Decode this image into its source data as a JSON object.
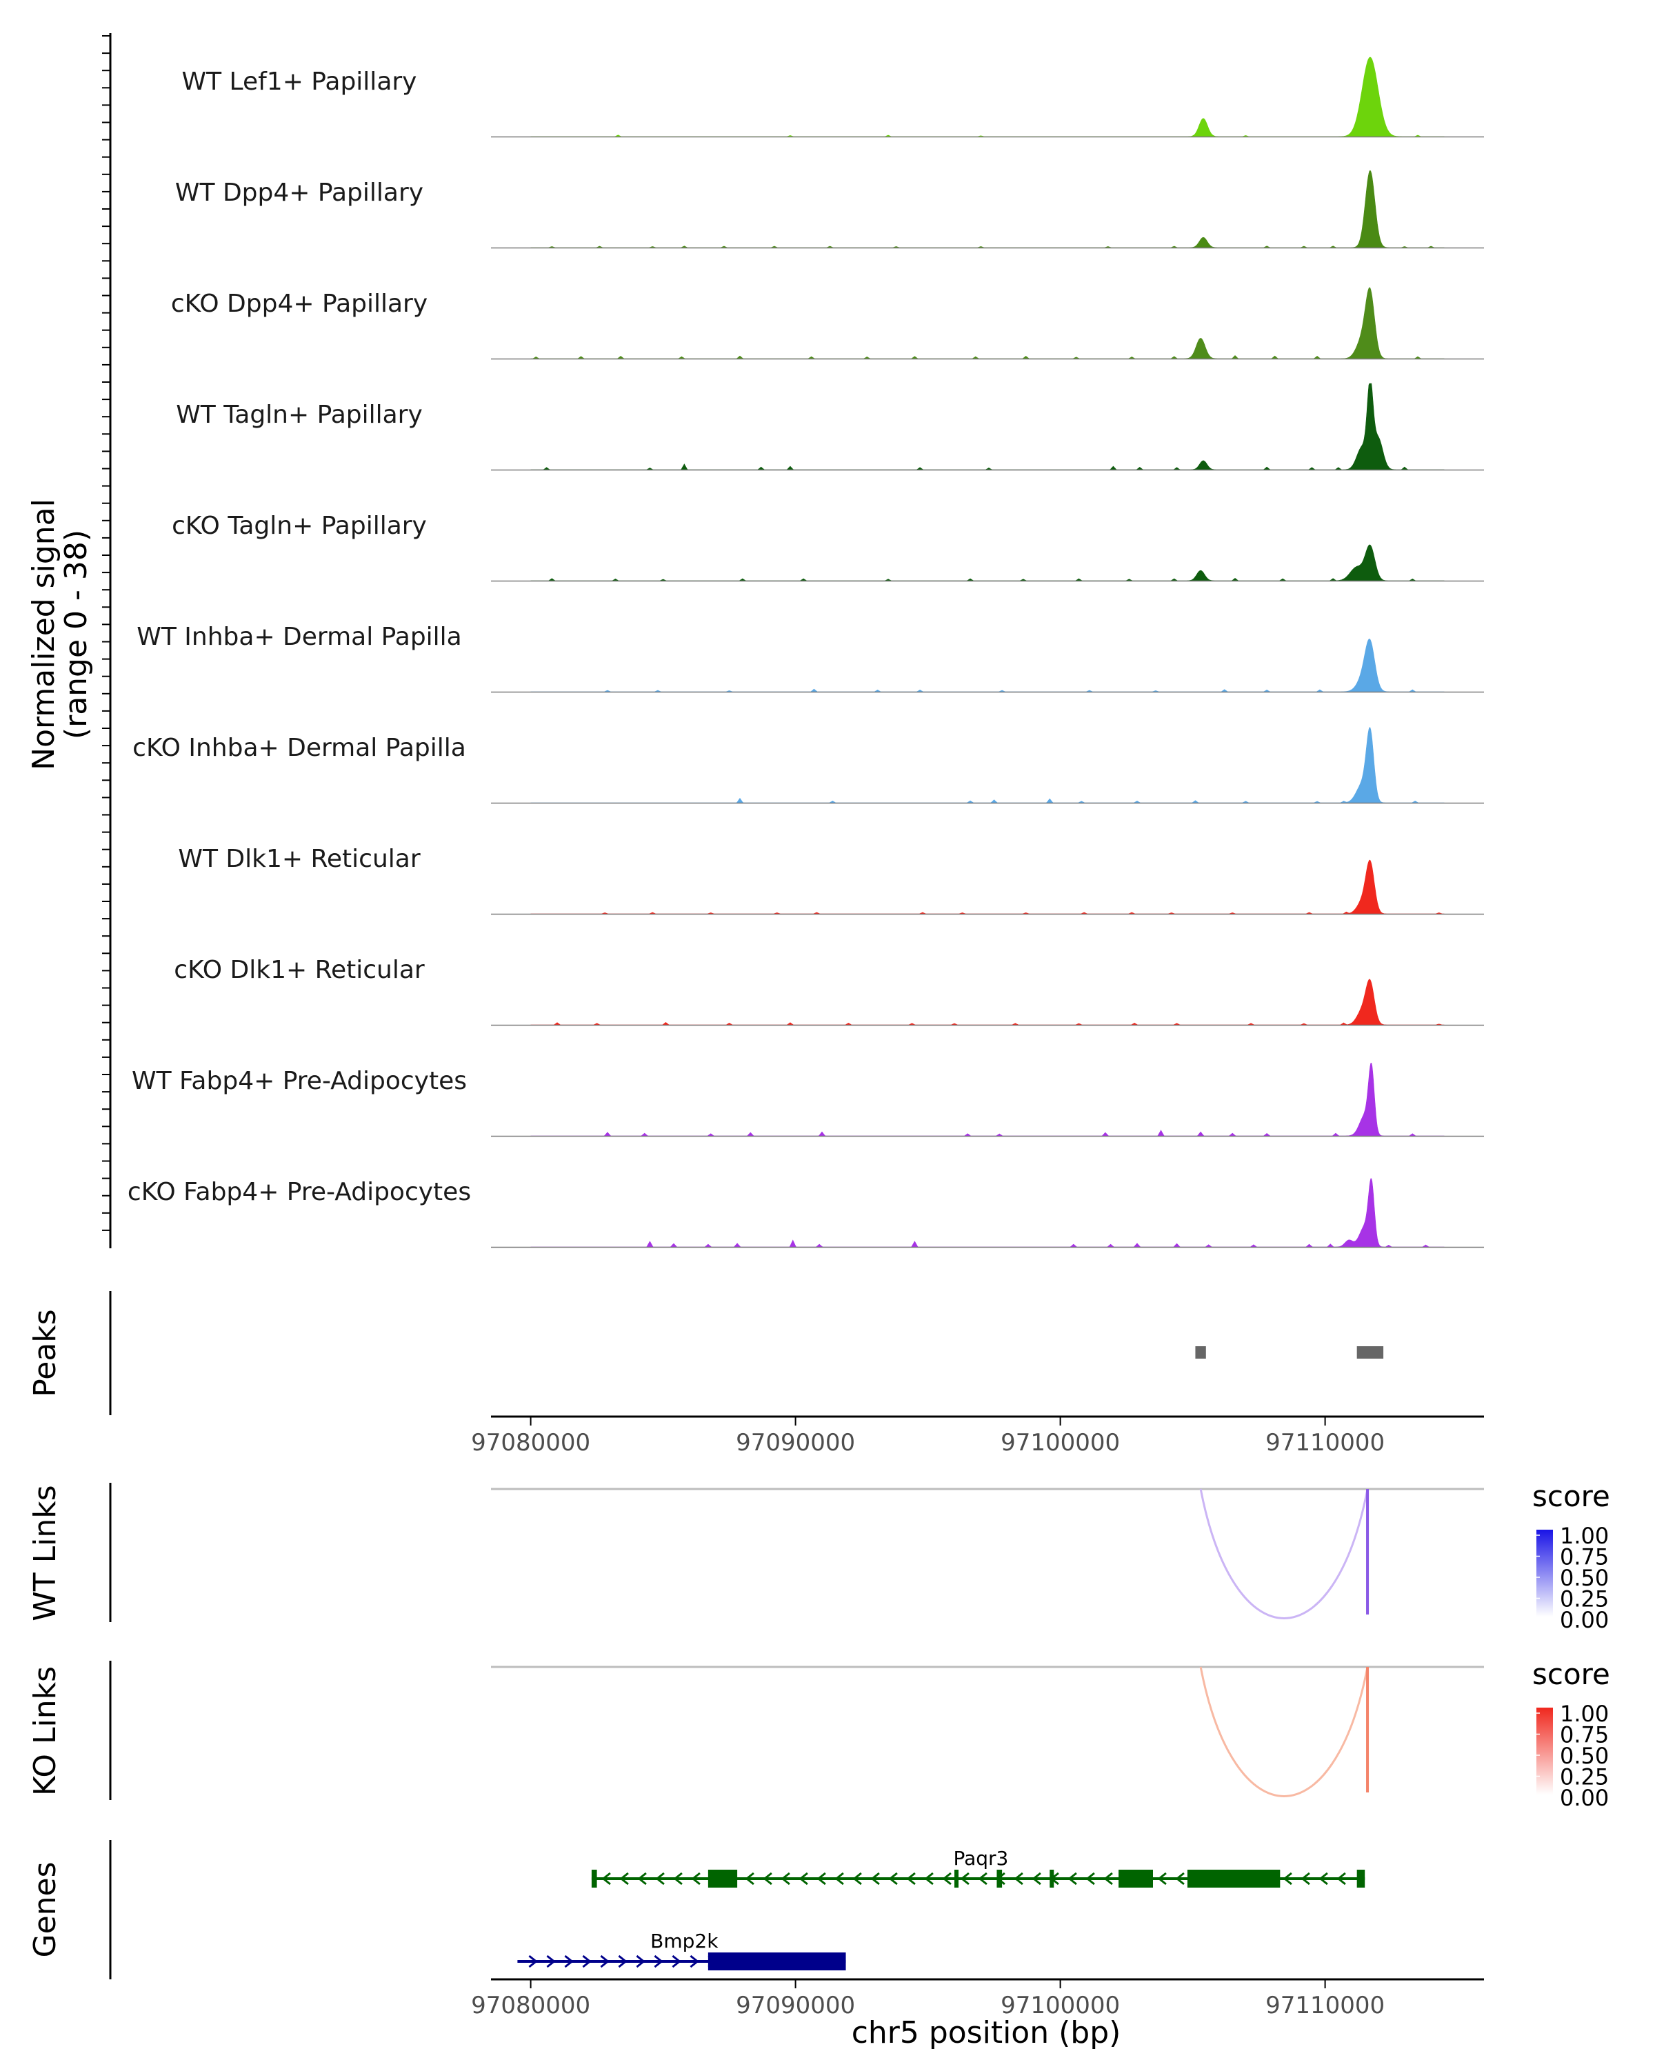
{
  "chart_data": {
    "type": "area",
    "title": "",
    "xlabel": "chr5 position (bp)",
    "xlim": [
      97078500,
      97116000
    ],
    "x_ticks": [
      97080000,
      97090000,
      97100000,
      97110000
    ],
    "x_tick_labels": [
      "97080000",
      "97090000",
      "97100000",
      "97110000"
    ],
    "coverage": {
      "ylabel_line1": "Normalized signal",
      "ylabel_line2": "(range 0 - 38)",
      "ylim": [
        0,
        38
      ],
      "tracks": [
        {
          "name": "WT Lef1+ Papillary",
          "color": "#6dd40c",
          "noise": [
            [
              97083300,
              0.7
            ],
            [
              97089800,
              0.5
            ],
            [
              97093500,
              0.6
            ],
            [
              97097000,
              0.4
            ],
            [
              97107000,
              0.5
            ],
            [
              97113500,
              0.6
            ]
          ],
          "peaks": [
            [
              97105400,
              160,
              8
            ],
            [
              97111700,
              300,
              35
            ]
          ]
        },
        {
          "name": "WT Dpp4+ Papillary",
          "color": "#4a8a14",
          "noise": [
            [
              97080800,
              0.5
            ],
            [
              97082600,
              0.6
            ],
            [
              97084600,
              0.5
            ],
            [
              97085800,
              0.7
            ],
            [
              97087300,
              0.6
            ],
            [
              97089200,
              0.6
            ],
            [
              97091300,
              0.6
            ],
            [
              97093800,
              0.5
            ],
            [
              97097000,
              0.5
            ],
            [
              97101800,
              0.5
            ],
            [
              97104300,
              0.6
            ],
            [
              97107800,
              0.7
            ],
            [
              97109200,
              0.6
            ],
            [
              97110300,
              0.7
            ],
            [
              97113000,
              0.5
            ],
            [
              97114000,
              0.6
            ]
          ],
          "peaks": [
            [
              97105400,
              150,
              4.5
            ],
            [
              97111700,
              180,
              34
            ]
          ]
        },
        {
          "name": "cKO Dpp4+ Papillary",
          "color": "#4f8c1a",
          "noise": [
            [
              97080200,
              0.8
            ],
            [
              97081900,
              1.0
            ],
            [
              97083400,
              1.1
            ],
            [
              97085700,
              0.9
            ],
            [
              97087900,
              1.2
            ],
            [
              97090600,
              0.9
            ],
            [
              97092700,
              0.8
            ],
            [
              97094500,
              1.0
            ],
            [
              97096800,
              0.9
            ],
            [
              97098700,
              1.1
            ],
            [
              97100600,
              0.7
            ],
            [
              97102700,
              0.8
            ],
            [
              97104300,
              1.0
            ],
            [
              97106600,
              1.4
            ],
            [
              97108100,
              1.2
            ],
            [
              97109700,
              1.1
            ],
            [
              97113500,
              0.9
            ]
          ],
          "peaks": [
            [
              97105300,
              170,
              9
            ],
            [
              97111400,
              220,
              8
            ],
            [
              97111700,
              170,
              28
            ]
          ]
        },
        {
          "name": "WT Tagln+ Papillary",
          "color": "#0e5c0e",
          "noise": [
            [
              97080600,
              1.0
            ],
            [
              97084500,
              0.8
            ],
            [
              97085800,
              2.5
            ],
            [
              97088700,
              1.2
            ],
            [
              97089800,
              1.5
            ],
            [
              97094700,
              1.0
            ],
            [
              97097300,
              0.8
            ],
            [
              97102000,
              1.5
            ],
            [
              97103000,
              1.1
            ],
            [
              97104400,
              1.0
            ],
            [
              97107800,
              1.2
            ],
            [
              97109500,
              1.0
            ],
            [
              97110500,
              1.0
            ],
            [
              97113000,
              1.2
            ]
          ],
          "peaks": [
            [
              97105400,
              140,
              4
            ],
            [
              97111400,
              200,
              10
            ],
            [
              97111700,
              110,
              34
            ],
            [
              97112000,
              180,
              14
            ]
          ]
        },
        {
          "name": "cKO Tagln+ Papillary",
          "color": "#0e5c0e",
          "noise": [
            [
              97080800,
              1.0
            ],
            [
              97083200,
              0.8
            ],
            [
              97085000,
              0.6
            ],
            [
              97088000,
              0.9
            ],
            [
              97090300,
              0.9
            ],
            [
              97093500,
              0.7
            ],
            [
              97096600,
              0.9
            ],
            [
              97098600,
              0.7
            ],
            [
              97100700,
              0.9
            ],
            [
              97102600,
              0.7
            ],
            [
              97104300,
              0.9
            ],
            [
              97106600,
              1.1
            ],
            [
              97108400,
              0.9
            ],
            [
              97110300,
              1.0
            ],
            [
              97113300,
              0.8
            ]
          ],
          "peaks": [
            [
              97105300,
              150,
              4.5
            ],
            [
              97111200,
              250,
              6
            ],
            [
              97111700,
              180,
              15
            ]
          ]
        },
        {
          "name": "WT Inhba+ Dermal Papilla",
          "color": "#5aa8e6",
          "noise": [
            [
              97082900,
              0.6
            ],
            [
              97084800,
              0.6
            ],
            [
              97087500,
              0.5
            ],
            [
              97090700,
              1.2
            ],
            [
              97093100,
              0.8
            ],
            [
              97094700,
              0.8
            ],
            [
              97097800,
              0.6
            ],
            [
              97101100,
              0.6
            ],
            [
              97103600,
              0.5
            ],
            [
              97106200,
              1.0
            ],
            [
              97107800,
              0.8
            ],
            [
              97109800,
              0.9
            ],
            [
              97113300,
              0.9
            ]
          ],
          "peaks": [
            [
              97111500,
              250,
              7
            ],
            [
              97111700,
              180,
              18
            ]
          ]
        },
        {
          "name": "cKO Inhba+ Dermal Papilla",
          "color": "#5aa8e6",
          "noise": [
            [
              97087900,
              2.0
            ],
            [
              97091400,
              0.8
            ],
            [
              97096600,
              0.9
            ],
            [
              97097500,
              1.3
            ],
            [
              97099600,
              1.8
            ],
            [
              97100800,
              0.7
            ],
            [
              97102900,
              0.8
            ],
            [
              97105100,
              1.0
            ],
            [
              97107000,
              0.7
            ],
            [
              97109700,
              0.6
            ],
            [
              97110700,
              0.7
            ],
            [
              97113400,
              0.8
            ]
          ],
          "peaks": [
            [
              97111400,
              220,
              8
            ],
            [
              97111700,
              140,
              30
            ]
          ]
        },
        {
          "name": "WT Dlk1+ Reticular",
          "color": "#f0281e",
          "noise": [
            [
              97082800,
              0.5
            ],
            [
              97084600,
              0.6
            ],
            [
              97086800,
              0.5
            ],
            [
              97089300,
              0.5
            ],
            [
              97090800,
              0.6
            ],
            [
              97094800,
              0.6
            ],
            [
              97096300,
              0.5
            ],
            [
              97098700,
              0.5
            ],
            [
              97100900,
              0.6
            ],
            [
              97102700,
              0.6
            ],
            [
              97104200,
              0.5
            ],
            [
              97106500,
              0.5
            ],
            [
              97109400,
              0.6
            ],
            [
              97110800,
              0.8
            ],
            [
              97114300,
              0.5
            ]
          ],
          "peaks": [
            [
              97111400,
              200,
              5
            ],
            [
              97111700,
              160,
              22
            ]
          ]
        },
        {
          "name": "cKO Dlk1+ Reticular",
          "color": "#f0281e",
          "noise": [
            [
              97081000,
              1.0
            ],
            [
              97082500,
              0.7
            ],
            [
              97085100,
              1.1
            ],
            [
              97087500,
              0.8
            ],
            [
              97089800,
              1.0
            ],
            [
              97092000,
              0.8
            ],
            [
              97094400,
              0.7
            ],
            [
              97096000,
              0.6
            ],
            [
              97098300,
              0.7
            ],
            [
              97100700,
              0.6
            ],
            [
              97102800,
              0.8
            ],
            [
              97104400,
              0.7
            ],
            [
              97107200,
              0.7
            ],
            [
              97109200,
              0.6
            ],
            [
              97110700,
              0.9
            ],
            [
              97114300,
              0.4
            ]
          ],
          "peaks": [
            [
              97111400,
              200,
              6
            ],
            [
              97111700,
              160,
              18
            ]
          ]
        },
        {
          "name": "WT Fabp4+ Pre-Adipocytes",
          "color": "#a733e6",
          "noise": [
            [
              97082900,
              1.6
            ],
            [
              97084300,
              1.2
            ],
            [
              97086800,
              1.0
            ],
            [
              97088300,
              1.5
            ],
            [
              97091000,
              1.8
            ],
            [
              97096500,
              1.0
            ],
            [
              97097700,
              0.9
            ],
            [
              97101700,
              1.5
            ],
            [
              97103800,
              2.5
            ],
            [
              97105300,
              1.8
            ],
            [
              97106500,
              1.2
            ],
            [
              97107800,
              1.1
            ],
            [
              97110400,
              1.2
            ],
            [
              97113300,
              1.0
            ]
          ],
          "peaks": [
            [
              97111500,
              200,
              9
            ],
            [
              97111750,
              110,
              28
            ]
          ]
        },
        {
          "name": "cKO Fabp4+ Pre-Adipocytes",
          "color": "#a733e6",
          "noise": [
            [
              97084500,
              2.5
            ],
            [
              97085400,
              1.5
            ],
            [
              97086700,
              1.2
            ],
            [
              97087800,
              1.6
            ],
            [
              97089900,
              3.0
            ],
            [
              97090900,
              1.2
            ],
            [
              97094500,
              2.5
            ],
            [
              97100500,
              1.2
            ],
            [
              97101900,
              1.2
            ],
            [
              97102900,
              1.6
            ],
            [
              97104400,
              1.5
            ],
            [
              97105600,
              1.0
            ],
            [
              97107300,
              1.0
            ],
            [
              97109400,
              1.2
            ],
            [
              97110200,
              1.3
            ],
            [
              97112400,
              0.8
            ],
            [
              97113800,
              0.9
            ]
          ],
          "peaks": [
            [
              97110900,
              150,
              3
            ],
            [
              97111500,
              200,
              9
            ],
            [
              97111750,
              110,
              26
            ]
          ]
        }
      ]
    },
    "peaks_track": {
      "label": "Peaks",
      "regions": [
        [
          97105100,
          97105500
        ],
        [
          97111200,
          97112200
        ]
      ]
    },
    "links": [
      {
        "label": "WT Links",
        "legend_title": "score",
        "legend_ticks": [
          "1.00",
          "0.75",
          "0.50",
          "0.25",
          "0.00"
        ],
        "low_color": "#ffffff",
        "high_color": "#1a14e6",
        "items": [
          {
            "start": 97105300,
            "end": 97111600,
            "score": 0.3,
            "color": "#cbb5f5"
          },
          {
            "start": 97111600,
            "end": 97111650,
            "score": 0.7,
            "color": "#8a5ae6"
          }
        ]
      },
      {
        "label": "KO Links",
        "legend_title": "score",
        "legend_ticks": [
          "1.00",
          "0.75",
          "0.50",
          "0.25",
          "0.00"
        ],
        "low_color": "#ffffff",
        "high_color": "#f0281e",
        "items": [
          {
            "start": 97105300,
            "end": 97111600,
            "score": 0.3,
            "color": "#f8b9a3"
          },
          {
            "start": 97111600,
            "end": 97111650,
            "score": 0.6,
            "color": "#f4846a"
          }
        ]
      }
    ],
    "genes": {
      "label": "Genes",
      "items": [
        {
          "name": "Paqr3",
          "color": "#006400",
          "strand": "-",
          "start": 97082300,
          "end": 97111500,
          "exons": [
            [
              97082300,
              97082500
            ],
            [
              97086700,
              97087800
            ],
            [
              97096000,
              97096150
            ],
            [
              97097600,
              97097800
            ],
            [
              97099600,
              97099750
            ],
            [
              97102200,
              97103500
            ],
            [
              97104800,
              97108300
            ],
            [
              97111200,
              97111500
            ]
          ]
        },
        {
          "name": "Bmp2k",
          "color": "#00008b",
          "strand": "+",
          "start": 97079500,
          "end": 97091900,
          "exons": [
            [
              97086700,
              97091900
            ]
          ]
        }
      ]
    }
  }
}
